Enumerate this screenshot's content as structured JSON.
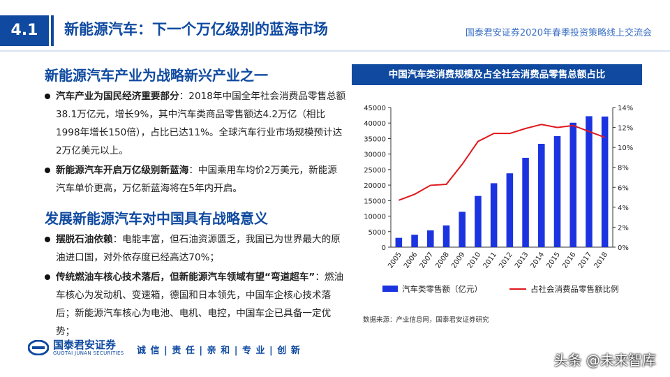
{
  "header": {
    "section_number": "4.1",
    "title": "新能源汽车：下一个万亿级别的蓝海市场",
    "conference": "国泰君安证券2020年春季投资策略线上交流会"
  },
  "left": {
    "section1_title": "新能源汽车产业为战略新兴产业之一",
    "bullets1": [
      {
        "bold": "汽车产业为国民经济重要部分",
        "text": "：2018年中国全年社会消费品零售总额38.1万亿元，增长9%，其中汽车类商品零售额达4.2万亿（相比1998年增长150倍），占比已达11%。全球汽车行业市场规模预计达2万亿美元以上。"
      },
      {
        "bold": "新能源汽车开启万亿级别新蓝海",
        "text": "：中国乘用车均价2万美元，新能源汽车单价更高，万亿新蓝海将在5年内开启。"
      }
    ],
    "section2_title": "发展新能源汽车对中国具有战略意义",
    "bullets2": [
      {
        "bold": "摆脱石油依赖",
        "text": "：电能丰富，但石油资源匮乏，我国已为世界最大的原油进口国，对外依存度已经高达70%；"
      },
      {
        "bold": "传统燃油车核心技术落后，但新能源汽车领域有望“弯道超车”",
        "text": "：燃油车核心为发动机、变速箱，德国和日本领先，中国车企核心技术落后；新能源汽车核心为电池、电机、电控，中国车企已具备一定优势；"
      }
    ]
  },
  "chart_data": {
    "type": "bar",
    "title": "中国汽车类消费规模及占全社会消费品零售总额占比",
    "categories": [
      "2005",
      "2006",
      "2007",
      "2008",
      "2009",
      "2010",
      "2011",
      "2012",
      "2013",
      "2014",
      "2015",
      "2016",
      "2017",
      "2018"
    ],
    "series": [
      {
        "name": "汽车类零售额（亿元）",
        "type": "bar",
        "axis": "left",
        "color": "#1c33e0",
        "values": [
          3000,
          4000,
          5400,
          7000,
          11400,
          16500,
          20600,
          23800,
          28800,
          33300,
          35800,
          40100,
          42200,
          42100
        ]
      },
      {
        "name": "占社会消费品零售额比例",
        "type": "line",
        "axis": "right",
        "color": "#e0181b",
        "values": [
          4.7,
          5.3,
          6.2,
          6.3,
          8.3,
          10.6,
          11.4,
          11.4,
          11.9,
          12.3,
          12.0,
          12.2,
          11.6,
          11.0
        ]
      }
    ],
    "y_left": {
      "min": 0,
      "max": 45000,
      "ticks": [
        0,
        5000,
        10000,
        15000,
        20000,
        25000,
        30000,
        35000,
        40000,
        45000
      ]
    },
    "y_right": {
      "min": 0,
      "max": 14,
      "ticks": [
        "0%",
        "2%",
        "4%",
        "6%",
        "8%",
        "10%",
        "12%",
        "14%"
      ]
    },
    "legend_position": "bottom",
    "source": "数据来源：产业信息网，国泰君安证券研究"
  },
  "footer": {
    "logo_cn": "国泰君安证券",
    "logo_en": "GUOTAI JUNAN SECURITIES",
    "slogan": "诚 信 | 责 任 | 亲 和 | 专 业 | 创 新",
    "watermark": "头条 @未来智库"
  }
}
